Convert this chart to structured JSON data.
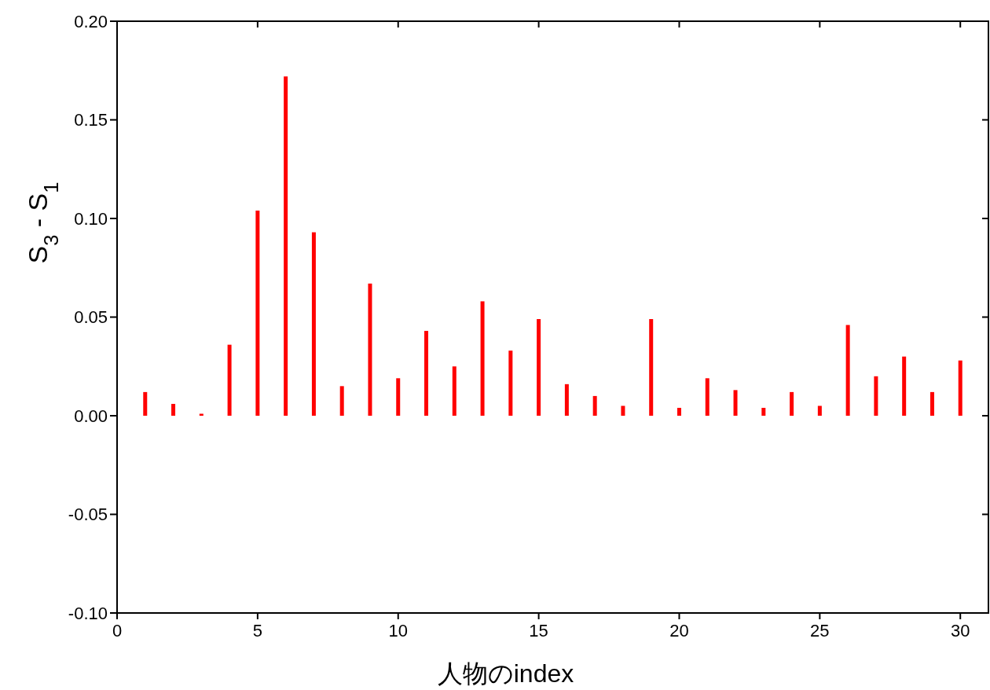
{
  "chart_data": {
    "type": "bar",
    "xlabel": "人物のindex",
    "ylabel": "S$_{3}$ - S$_{1}$",
    "x": [
      1,
      2,
      3,
      4,
      5,
      6,
      7,
      8,
      9,
      10,
      11,
      12,
      13,
      14,
      15,
      16,
      17,
      18,
      19,
      20,
      21,
      22,
      23,
      24,
      25,
      26,
      27,
      28,
      29,
      30
    ],
    "values": [
      0.012,
      0.006,
      0.001,
      0.036,
      0.104,
      0.172,
      0.093,
      0.015,
      0.067,
      0.019,
      0.043,
      0.025,
      0.058,
      0.033,
      0.049,
      0.016,
      0.01,
      0.005,
      0.049,
      0.004,
      0.019,
      0.013,
      0.004,
      0.012,
      0.005,
      0.046,
      0.02,
      0.03,
      0.012,
      0.028
    ],
    "color": "#ff0000",
    "xlim": [
      0,
      31
    ],
    "xticks": [
      0,
      5,
      10,
      15,
      20,
      25,
      30
    ],
    "ylim": [
      -0.1,
      0.2
    ],
    "yticks": [
      {
        "value": -0.1,
        "label": "-0.10"
      },
      {
        "value": -0.05,
        "label": "-0.05"
      },
      {
        "value": 0,
        "label": "0.00"
      },
      {
        "value": 0.05,
        "label": "0.05"
      },
      {
        "value": 0.1,
        "label": "0.10"
      },
      {
        "value": 0.15,
        "label": "0.15"
      },
      {
        "value": 0.2,
        "label": "0.20"
      }
    ],
    "grid": false
  }
}
